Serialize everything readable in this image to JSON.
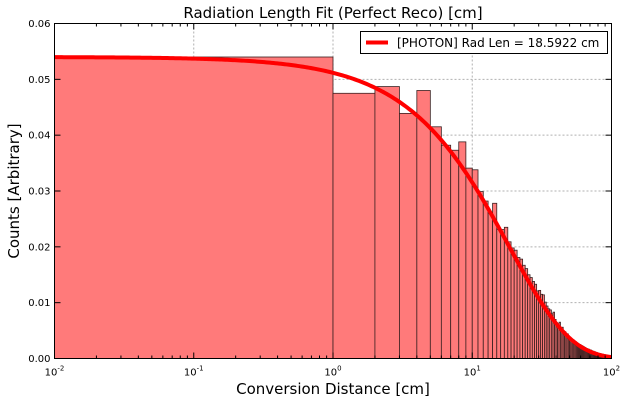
{
  "chart_data": {
    "type": "bar",
    "title": "Radiation Length Fit (Perfect Reco) [cm]",
    "xlabel": "Conversion Distance [cm]",
    "ylabel": "Counts [Arbitrary]",
    "xscale": "log",
    "xlim": [
      0.01,
      100
    ],
    "ylim": [
      0,
      0.06
    ],
    "grid": true,
    "legend_position": "top-right",
    "x_ticks": [
      {
        "base": "10",
        "exp": "-2",
        "value": 0.01
      },
      {
        "base": "10",
        "exp": "-1",
        "value": 0.1
      },
      {
        "base": "10",
        "exp": "0",
        "value": 1
      },
      {
        "base": "10",
        "exp": "1",
        "value": 10
      },
      {
        "base": "10",
        "exp": "2",
        "value": 100
      }
    ],
    "y_ticks": [
      "0.00",
      "0.01",
      "0.02",
      "0.03",
      "0.04",
      "0.05",
      "0.06"
    ],
    "colors": {
      "bar_fill": "#ff7a7a",
      "bar_edge": "#3a2020",
      "fit_line": "#ff0000",
      "grid": "#b0b0b0"
    },
    "histogram": {
      "edges": [
        0.01,
        1,
        2,
        3,
        4,
        5,
        6,
        7,
        8,
        9,
        10,
        11,
        12,
        13,
        14,
        15,
        16,
        17,
        18,
        19,
        20,
        21,
        22,
        23,
        24,
        25,
        26,
        27,
        28,
        29,
        30,
        31,
        32,
        33,
        34,
        35,
        36,
        37,
        38,
        39,
        40,
        41,
        42,
        43,
        44,
        45,
        46,
        47,
        48,
        49,
        50,
        51,
        52,
        53,
        54,
        55,
        56,
        57,
        58,
        59,
        60,
        61,
        62,
        63,
        64,
        65,
        66,
        67,
        68,
        69,
        70,
        71,
        72,
        73,
        74,
        75,
        76,
        77,
        78,
        79,
        80,
        81,
        82,
        83,
        84,
        85,
        86,
        87,
        88,
        89,
        90,
        91,
        92,
        93,
        94,
        95,
        96,
        97,
        98,
        99,
        100
      ],
      "values": [
        0.054,
        0.0475,
        0.0487,
        0.0439,
        0.048,
        0.0415,
        0.0382,
        0.0373,
        0.0388,
        0.0341,
        0.0338,
        0.0299,
        0.0282,
        0.0262,
        0.0278,
        0.0231,
        0.0231,
        0.0235,
        0.0209,
        0.0198,
        0.0194,
        0.0181,
        0.0178,
        0.0167,
        0.0161,
        0.015,
        0.0145,
        0.0138,
        0.0133,
        0.0121,
        0.0122,
        0.0115,
        0.0114,
        0.0101,
        0.0094,
        0.0089,
        0.0087,
        0.008,
        0.0083,
        0.007,
        0.0064,
        0.0061,
        0.0065,
        0.0052,
        0.0056,
        0.0049,
        0.0048,
        0.0045,
        0.0044,
        0.004,
        0.0038,
        0.0036,
        0.0034,
        0.0033,
        0.0031,
        0.003,
        0.0028,
        0.0027,
        0.0026,
        0.0025,
        0.0024,
        0.0023,
        0.0022,
        0.0021,
        0.002,
        0.0019,
        0.0018,
        0.0017,
        0.0017,
        0.0016,
        0.0015,
        0.0015,
        0.0014,
        0.0013,
        0.0013,
        0.0012,
        0.0012,
        0.0011,
        0.0011,
        0.001,
        0.001,
        0.0009,
        0.0009,
        0.0009,
        0.0008,
        0.0008,
        0.0008,
        0.0007,
        0.0007,
        0.0007,
        0.0006,
        0.0006,
        0.0006,
        0.0006,
        0.0005,
        0.0005,
        0.0005,
        0.0005,
        0.0004,
        0.0004
      ]
    },
    "fit": {
      "name": "[PHOTON] Rad Len = 18.5922 cm",
      "amplitude": 0.054,
      "rad_len": 18.5922,
      "color": "#ff0000"
    }
  }
}
